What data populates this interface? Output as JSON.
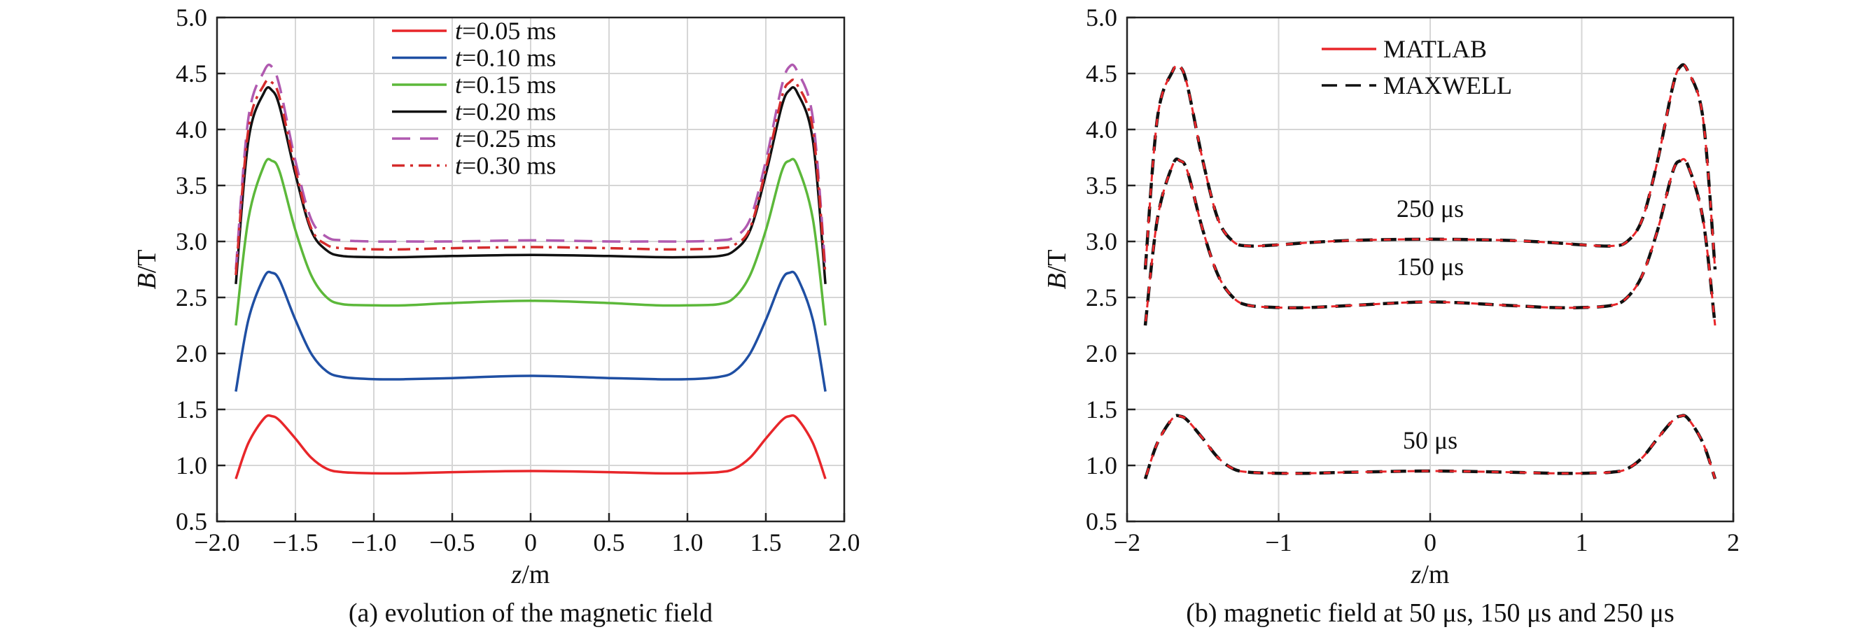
{
  "chart_data": [
    {
      "type": "line",
      "caption": "(a) evolution of the magnetic field",
      "xlabel": {
        "italic": "z",
        "rest": "/m"
      },
      "ylabel": {
        "italic": "B",
        "rest": "/T"
      },
      "xlim": [
        -2.0,
        2.0
      ],
      "ylim": [
        0.5,
        5.0
      ],
      "xticks": [
        -2.0,
        -1.5,
        -1.0,
        -0.5,
        0,
        0.5,
        1.0,
        1.5,
        2.0
      ],
      "xtick_labels": [
        "−2.0",
        "−1.5",
        "−1.0",
        "−0.5",
        "0",
        "0.5",
        "1.0",
        "1.5",
        "2.0"
      ],
      "yticks": [
        0.5,
        1.0,
        1.5,
        2.0,
        2.5,
        3.0,
        3.5,
        4.0,
        4.5,
        5.0
      ],
      "ytick_labels": [
        "0.5",
        "1.0",
        "1.5",
        "2.0",
        "2.5",
        "3.0",
        "3.5",
        "4.0",
        "4.5",
        "5.0"
      ],
      "grid": true,
      "legend_position": "top-center",
      "series": [
        {
          "name": "0.05",
          "legend_italic": "t",
          "legend_rest": "=0.05 ms",
          "color": "#e8262a",
          "dash": "solid",
          "x": [
            -1.88,
            -1.8,
            -1.7,
            -1.65,
            -1.6,
            -1.5,
            -1.4,
            -1.3,
            -1.2,
            -1.0,
            -0.8,
            -0.5,
            0,
            0.5,
            0.8,
            1.0,
            1.2,
            1.3,
            1.4,
            1.5,
            1.6,
            1.65,
            1.7,
            1.8,
            1.88
          ],
          "y": [
            0.88,
            1.2,
            1.42,
            1.44,
            1.4,
            1.24,
            1.07,
            0.97,
            0.94,
            0.93,
            0.93,
            0.94,
            0.95,
            0.94,
            0.93,
            0.93,
            0.94,
            0.97,
            1.07,
            1.24,
            1.4,
            1.44,
            1.42,
            1.2,
            0.88
          ]
        },
        {
          "name": "0.10",
          "legend_italic": "t",
          "legend_rest": "=0.10 ms",
          "color": "#1f4fa3",
          "dash": "solid",
          "x": [
            -1.88,
            -1.8,
            -1.7,
            -1.65,
            -1.6,
            -1.5,
            -1.4,
            -1.3,
            -1.2,
            -1.0,
            -0.8,
            -0.5,
            0,
            0.5,
            0.8,
            1.0,
            1.2,
            1.3,
            1.4,
            1.5,
            1.6,
            1.65,
            1.7,
            1.8,
            1.88
          ],
          "y": [
            1.66,
            2.3,
            2.68,
            2.72,
            2.65,
            2.3,
            2.0,
            1.84,
            1.79,
            1.77,
            1.77,
            1.78,
            1.8,
            1.78,
            1.77,
            1.77,
            1.79,
            1.84,
            2.0,
            2.3,
            2.65,
            2.72,
            2.68,
            2.3,
            1.66
          ]
        },
        {
          "name": "0.15",
          "legend_italic": "t",
          "legend_rest": "=0.15 ms",
          "color": "#5cb83a",
          "dash": "solid",
          "x": [
            -1.88,
            -1.8,
            -1.7,
            -1.65,
            -1.6,
            -1.5,
            -1.4,
            -1.3,
            -1.2,
            -1.0,
            -0.8,
            -0.5,
            0,
            0.5,
            0.8,
            1.0,
            1.2,
            1.3,
            1.4,
            1.5,
            1.6,
            1.65,
            1.7,
            1.8,
            1.88
          ],
          "y": [
            2.25,
            3.2,
            3.68,
            3.72,
            3.62,
            3.1,
            2.7,
            2.5,
            2.44,
            2.43,
            2.43,
            2.45,
            2.47,
            2.45,
            2.43,
            2.43,
            2.44,
            2.5,
            2.7,
            3.1,
            3.62,
            3.72,
            3.68,
            3.2,
            2.25
          ]
        },
        {
          "name": "0.20",
          "legend_italic": "t",
          "legend_rest": "=0.20 ms",
          "color": "#111111",
          "dash": "solid",
          "x": [
            -1.88,
            -1.8,
            -1.7,
            -1.65,
            -1.6,
            -1.5,
            -1.4,
            -1.3,
            -1.2,
            -1.0,
            -0.8,
            -0.5,
            0,
            0.5,
            0.8,
            1.0,
            1.2,
            1.3,
            1.4,
            1.5,
            1.6,
            1.65,
            1.7,
            1.8,
            1.88
          ],
          "y": [
            2.62,
            3.9,
            4.33,
            4.35,
            4.2,
            3.6,
            3.1,
            2.92,
            2.87,
            2.86,
            2.86,
            2.87,
            2.88,
            2.87,
            2.86,
            2.86,
            2.87,
            2.92,
            3.1,
            3.6,
            4.2,
            4.35,
            4.33,
            3.9,
            2.62
          ]
        },
        {
          "name": "0.25",
          "legend_italic": "t",
          "legend_rest": "=0.25 ms",
          "color": "#b05ab0",
          "dash": "26 14",
          "x": [
            -1.88,
            -1.8,
            -1.7,
            -1.65,
            -1.6,
            -1.5,
            -1.4,
            -1.3,
            -1.2,
            -1.0,
            -0.8,
            -0.5,
            0,
            0.5,
            0.8,
            1.0,
            1.2,
            1.3,
            1.4,
            1.5,
            1.6,
            1.65,
            1.7,
            1.8,
            1.88
          ],
          "y": [
            2.75,
            4.1,
            4.52,
            4.56,
            4.38,
            3.72,
            3.2,
            3.04,
            3.01,
            3.0,
            3.0,
            3.0,
            3.01,
            3.0,
            3.0,
            3.0,
            3.01,
            3.04,
            3.2,
            3.72,
            4.38,
            4.56,
            4.52,
            4.1,
            2.75
          ]
        },
        {
          "name": "0.30",
          "legend_italic": "t",
          "legend_rest": "=0.30 ms",
          "color": "#d42c2c",
          "dash": "18 8 4 8",
          "x": [
            -1.88,
            -1.8,
            -1.7,
            -1.65,
            -1.6,
            -1.5,
            -1.4,
            -1.3,
            -1.2,
            -1.0,
            -0.8,
            -0.5,
            0,
            0.5,
            0.8,
            1.0,
            1.2,
            1.3,
            1.4,
            1.5,
            1.6,
            1.65,
            1.7,
            1.8,
            1.88
          ],
          "y": [
            2.7,
            4.0,
            4.4,
            4.42,
            4.28,
            3.65,
            3.12,
            2.97,
            2.94,
            2.93,
            2.93,
            2.94,
            2.95,
            2.94,
            2.93,
            2.93,
            2.94,
            2.97,
            3.12,
            3.65,
            4.28,
            4.42,
            4.4,
            4.0,
            2.7
          ]
        }
      ]
    },
    {
      "type": "line",
      "caption": "(b) magnetic field at 50 μs, 150 μs and 250 μs",
      "xlabel": {
        "italic": "z",
        "rest": "/m"
      },
      "ylabel": {
        "italic": "B",
        "rest": "/T"
      },
      "xlim": [
        -2,
        2
      ],
      "ylim": [
        0.5,
        5.0
      ],
      "xticks": [
        -2,
        -1,
        0,
        1,
        2
      ],
      "xtick_labels": [
        "−2",
        "−1",
        "0",
        "1",
        "2"
      ],
      "yticks": [
        0.5,
        1.0,
        1.5,
        2.0,
        2.5,
        3.0,
        3.5,
        4.0,
        4.5,
        5.0
      ],
      "ytick_labels": [
        "0.5",
        "1.0",
        "1.5",
        "2.0",
        "2.5",
        "3.0",
        "3.5",
        "4.0",
        "4.5",
        "5.0"
      ],
      "grid": true,
      "legend_position": "top-center",
      "legend": [
        {
          "label": "MATLAB",
          "color": "#e8262a",
          "dash": "solid"
        },
        {
          "label": "MAXWELL",
          "color": "#111111",
          "dash": "22 12"
        }
      ],
      "annotations": [
        {
          "text": "250 μs",
          "x": 0,
          "y": 3.22
        },
        {
          "text": "150 μs",
          "x": 0,
          "y": 2.7
        },
        {
          "text": "50 μs",
          "x": 0,
          "y": 1.15
        }
      ],
      "curves": [
        {
          "time": "50 μs",
          "x": [
            -1.88,
            -1.8,
            -1.7,
            -1.65,
            -1.6,
            -1.5,
            -1.4,
            -1.3,
            -1.2,
            -1.0,
            -0.8,
            -0.5,
            0,
            0.5,
            0.8,
            1.0,
            1.2,
            1.3,
            1.4,
            1.5,
            1.6,
            1.65,
            1.7,
            1.8,
            1.88
          ],
          "y": [
            0.88,
            1.2,
            1.42,
            1.44,
            1.4,
            1.24,
            1.07,
            0.97,
            0.94,
            0.93,
            0.93,
            0.94,
            0.95,
            0.94,
            0.93,
            0.93,
            0.94,
            0.97,
            1.07,
            1.24,
            1.4,
            1.44,
            1.42,
            1.2,
            0.88
          ]
        },
        {
          "time": "150 μs",
          "x": [
            -1.88,
            -1.8,
            -1.7,
            -1.65,
            -1.6,
            -1.5,
            -1.4,
            -1.3,
            -1.2,
            -1.0,
            -0.8,
            -0.5,
            0,
            0.5,
            0.8,
            1.0,
            1.2,
            1.3,
            1.4,
            1.5,
            1.6,
            1.65,
            1.7,
            1.8,
            1.88
          ],
          "y": [
            2.25,
            3.2,
            3.68,
            3.72,
            3.62,
            3.1,
            2.7,
            2.5,
            2.43,
            2.41,
            2.41,
            2.43,
            2.46,
            2.43,
            2.41,
            2.41,
            2.43,
            2.5,
            2.7,
            3.1,
            3.62,
            3.72,
            3.68,
            3.2,
            2.25
          ]
        },
        {
          "time": "250 μs",
          "x": [
            -1.88,
            -1.8,
            -1.7,
            -1.65,
            -1.6,
            -1.5,
            -1.4,
            -1.3,
            -1.2,
            -1.0,
            -0.8,
            -0.5,
            0,
            0.5,
            0.8,
            1.0,
            1.2,
            1.3,
            1.4,
            1.5,
            1.6,
            1.65,
            1.7,
            1.8,
            1.88
          ],
          "y": [
            2.75,
            4.1,
            4.52,
            4.56,
            4.38,
            3.72,
            3.2,
            3.0,
            2.96,
            2.97,
            2.99,
            3.01,
            3.02,
            3.01,
            2.99,
            2.97,
            2.96,
            3.0,
            3.2,
            3.72,
            4.38,
            4.56,
            4.52,
            4.1,
            2.75
          ]
        }
      ]
    }
  ]
}
